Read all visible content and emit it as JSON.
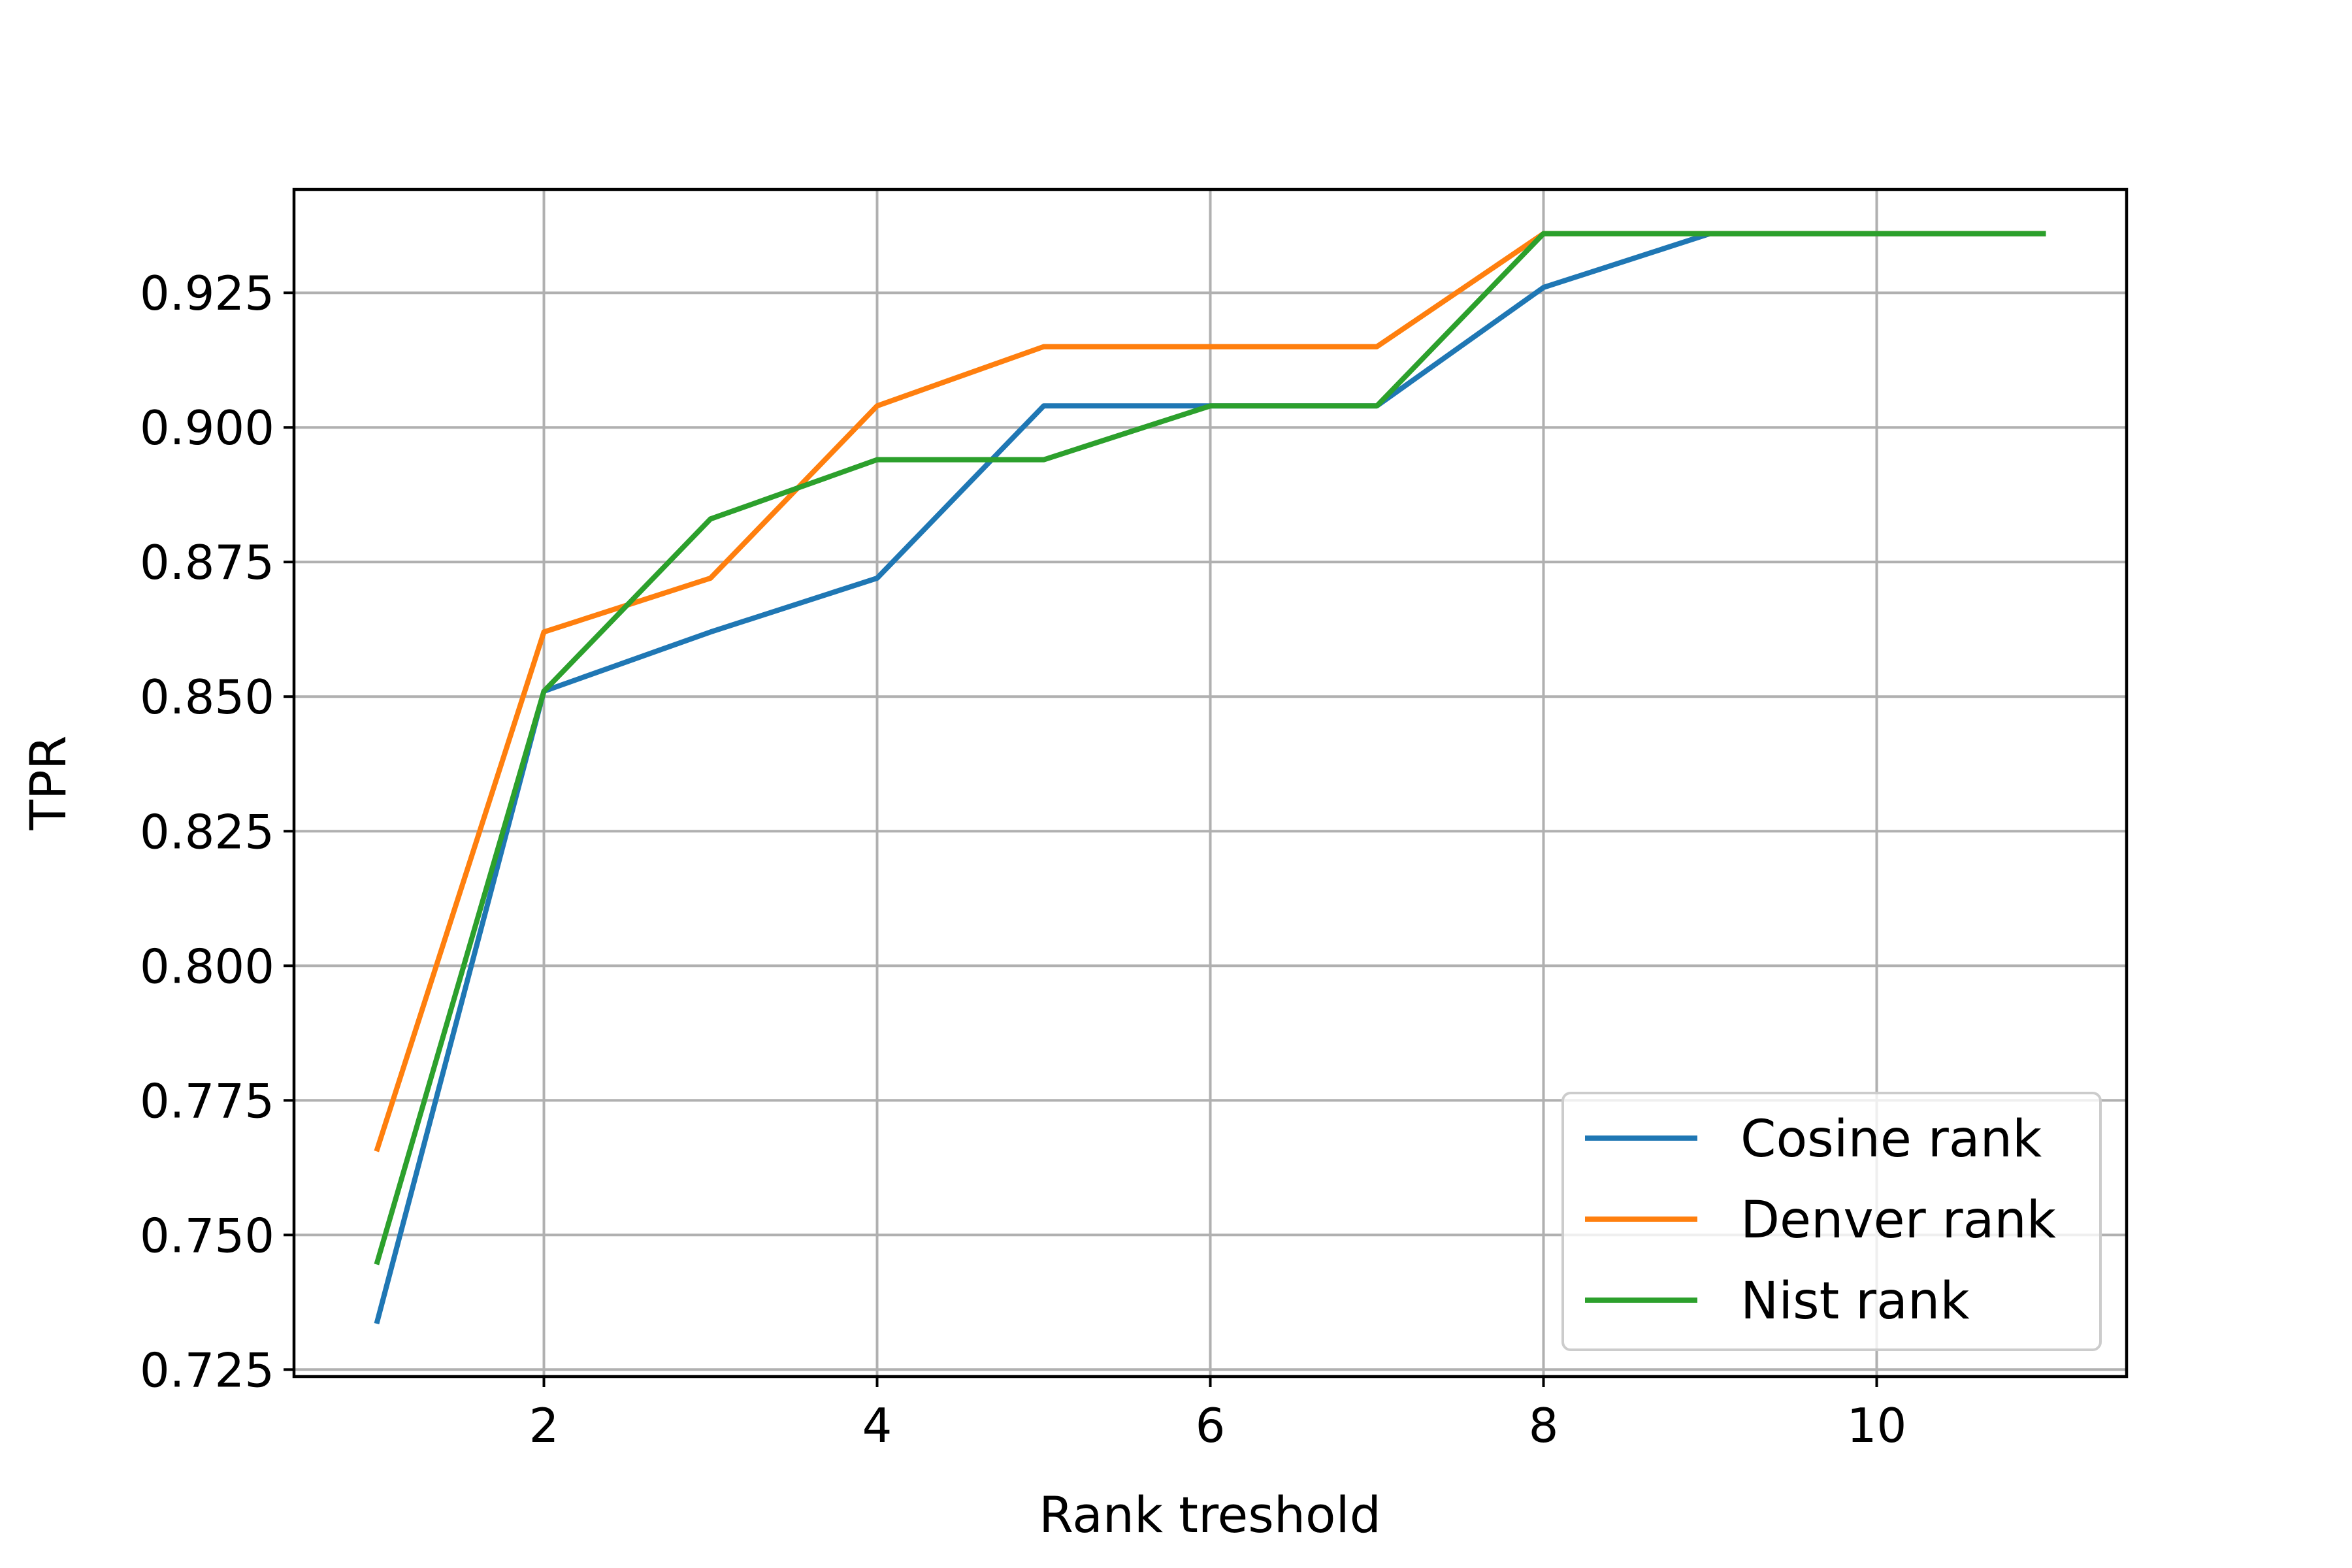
{
  "chart_data": {
    "type": "line",
    "xlabel": "Rank treshold",
    "ylabel": "TPR",
    "xlim": [
      0.5,
      11.5
    ],
    "ylim": [
      0.7237,
      0.9442
    ],
    "xticks": [
      2,
      4,
      6,
      8,
      10
    ],
    "yticks": [
      0.725,
      0.75,
      0.775,
      0.8,
      0.825,
      0.85,
      0.875,
      0.9,
      0.925
    ],
    "ytick_labels": [
      "0.725",
      "0.750",
      "0.775",
      "0.800",
      "0.825",
      "0.850",
      "0.875",
      "0.900",
      "0.925"
    ],
    "xtick_labels": [
      "2",
      "4",
      "6",
      "8",
      "10"
    ],
    "grid": true,
    "legend_position": "lower-right",
    "x": [
      1,
      2,
      3,
      4,
      5,
      6,
      7,
      8,
      9,
      10,
      11
    ],
    "series": [
      {
        "name": "Cosine rank",
        "color": "#1f77b4",
        "values": [
          0.734,
          0.851,
          0.862,
          0.872,
          0.904,
          0.904,
          0.904,
          0.926,
          0.936,
          0.936,
          0.936
        ]
      },
      {
        "name": "Denver rank",
        "color": "#ff7f0e",
        "values": [
          0.766,
          0.862,
          0.872,
          0.904,
          0.915,
          0.915,
          0.915,
          0.936,
          0.936,
          0.936,
          0.936
        ]
      },
      {
        "name": "Nist rank",
        "color": "#2ca02c",
        "values": [
          0.745,
          0.851,
          0.883,
          0.894,
          0.894,
          0.904,
          0.904,
          0.936,
          0.936,
          0.936,
          0.936
        ]
      }
    ]
  }
}
